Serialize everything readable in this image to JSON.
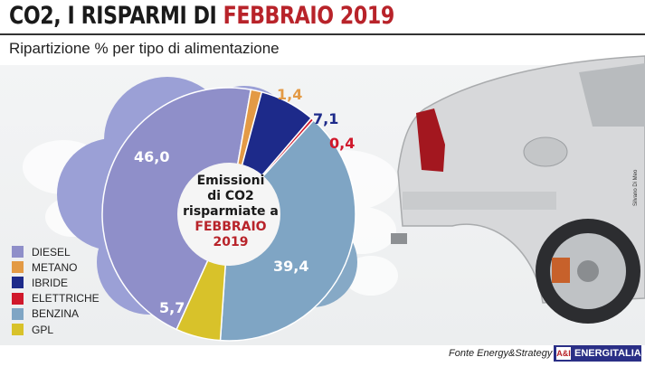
{
  "header": {
    "title_prefix": "CO2, I RISPARMI DI ",
    "title_accent": "FEBBRAIO 2019",
    "subtitle": "Ripartizione % per tipo di alimentazione"
  },
  "center_label": {
    "line1": "Emissioni",
    "line2": "di CO2",
    "line3": "risparmiate a",
    "line4": "FEBBRAIO",
    "line5": "2019"
  },
  "chart_data": {
    "type": "pie",
    "title": "CO2, I RISPARMI DI FEBBRAIO 2019",
    "subtitle": "Ripartizione % per tipo di alimentazione",
    "categories": [
      "DIESEL",
      "METANO",
      "IBRIDE",
      "ELETTRICHE",
      "BENZINA",
      "GPL"
    ],
    "values": [
      46.0,
      1.4,
      7.1,
      0.4,
      39.4,
      5.7
    ],
    "labels": [
      "46,0",
      "1,4",
      "7,1",
      "0,4",
      "39,4",
      "5,7"
    ],
    "colors": [
      "#8f8fc9",
      "#e39a45",
      "#1d2a8a",
      "#d0182b",
      "#7fa5c4",
      "#d8c22a"
    ],
    "legend_position": "left"
  },
  "legend": [
    {
      "label": "DIESEL",
      "color": "#8f8fc9"
    },
    {
      "label": "METANO",
      "color": "#e39a45"
    },
    {
      "label": "IBRIDE",
      "color": "#1d2a8a"
    },
    {
      "label": "ELETTRICHE",
      "color": "#d0182b"
    },
    {
      "label": "BENZINA",
      "color": "#7fa5c4"
    },
    {
      "label": "GPL",
      "color": "#d8c22a"
    }
  ],
  "footer": {
    "source": "Fonte Energy&Strategy",
    "logo_text": "ENERGITALIA",
    "logo_mark": "A&I"
  },
  "photo_credit": "Silvano Di Meo"
}
